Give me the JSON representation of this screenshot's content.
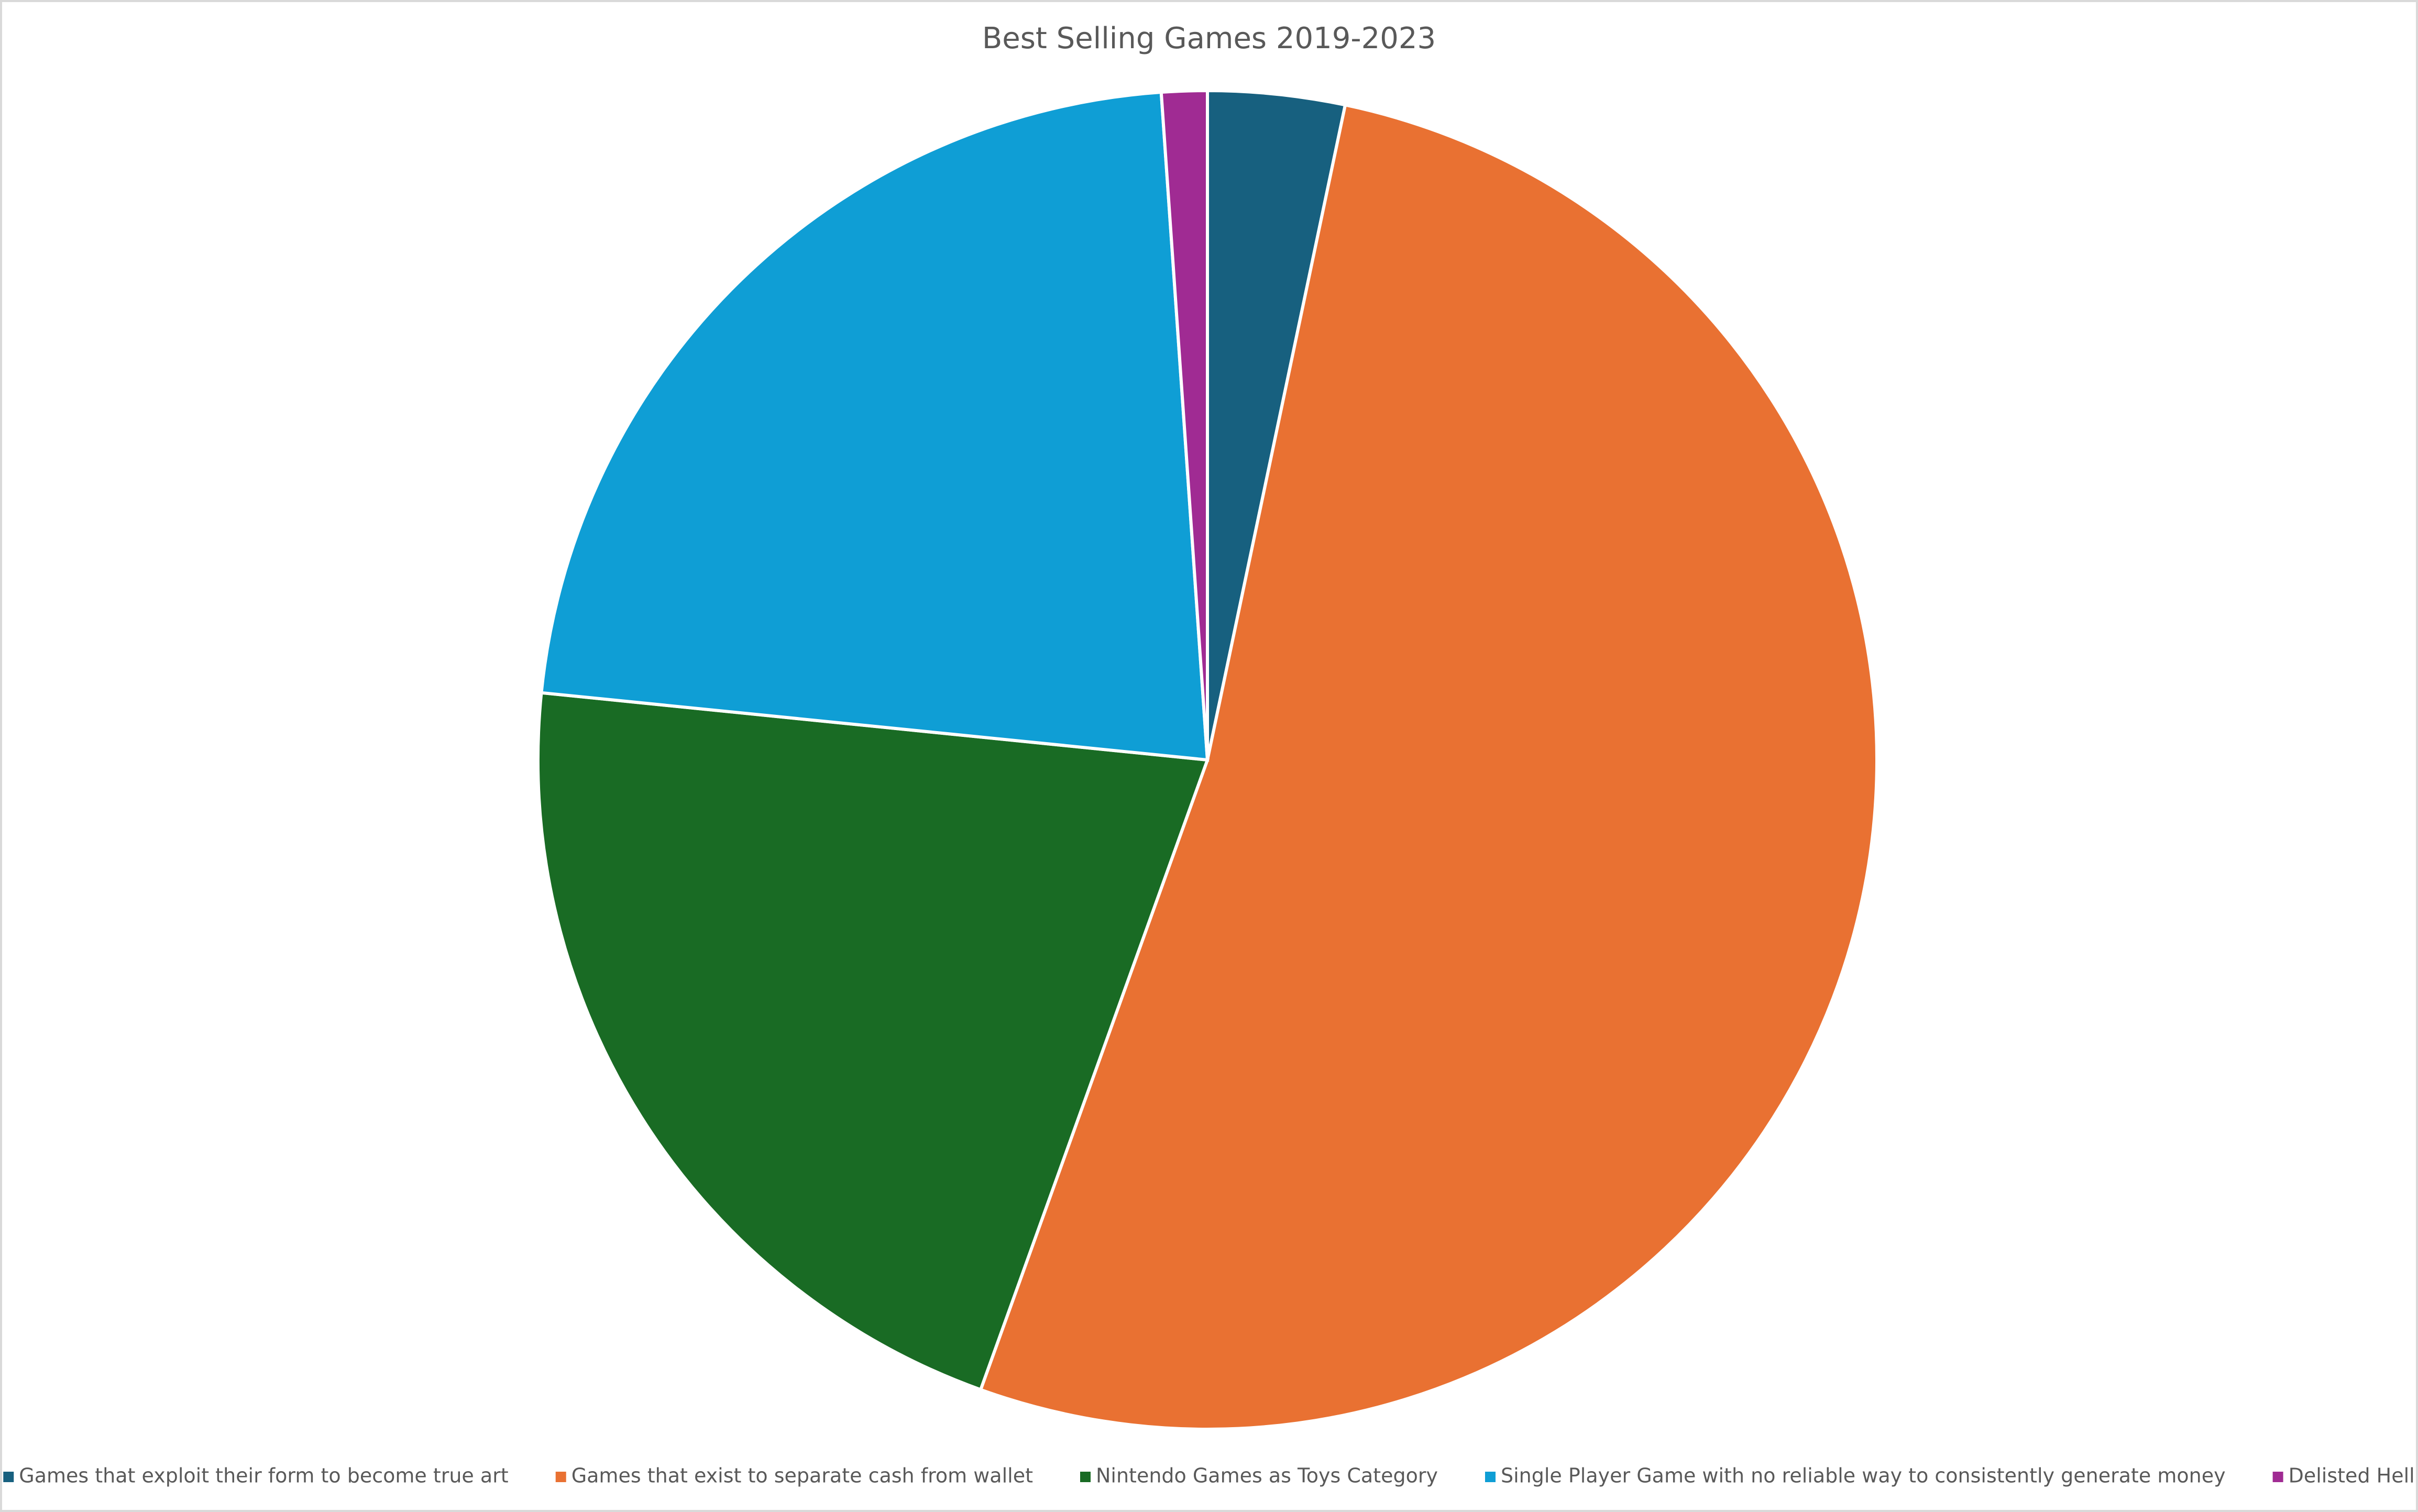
{
  "chart_data": {
    "type": "pie",
    "title": "Best Selling Games 2019-2023",
    "categories": [
      "Games that exploit their form to become true art",
      "Games that exist to separate cash from wallet",
      "Nintendo Games as Toys Category",
      "Single Player Game with no reliable way to consistently generate money",
      "Delisted Hell"
    ],
    "values": [
      3.3,
      52.2,
      21.1,
      22.3,
      1.1
    ],
    "colors": [
      "#17607f",
      "#e97132",
      "#196b24",
      "#0f9ed5",
      "#a02b93"
    ],
    "legend": "bottom"
  }
}
